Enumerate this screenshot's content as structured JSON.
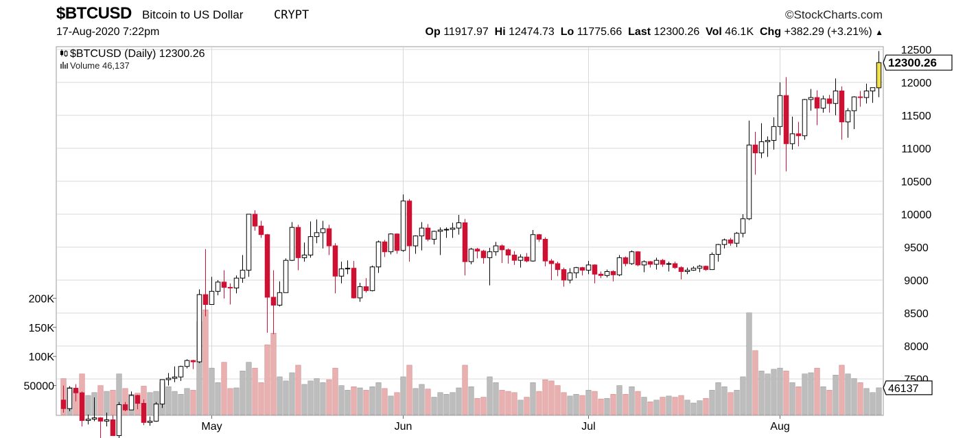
{
  "header": {
    "symbol": "$BTCUSD",
    "name": "Bitcoin to US Dollar",
    "exchange": "CRYPT",
    "brand": "©StockCharts.com",
    "date": "17-Aug-2020 7:22pm",
    "open_label": "Op",
    "open": "11917.97",
    "high_label": "Hi",
    "high": "12474.73",
    "low_label": "Lo",
    "low": "11775.66",
    "last_label": "Last",
    "last": "12300.26",
    "vol_label": "Vol",
    "vol": "46.1K",
    "chg_label": "Chg",
    "chg": "+382.29 (+3.21%)",
    "chg_arrow": "▲"
  },
  "legend": {
    "price": "$BTCUSD (Daily) 12300.26",
    "volume": "Volume 46,137"
  },
  "colors": {
    "up": "#000000",
    "down": "#cc1133",
    "last_candle": "#f0e050",
    "vol_up": "#bdbdbd",
    "vol_down": "#e8b0b0",
    "grid": "#d8d8d8"
  },
  "chart_data": {
    "type": "candlestick",
    "title": "$BTCUSD (Daily) 12300.26",
    "ylim": [
      7000,
      12500
    ],
    "yticks": [
      7500,
      8000,
      8500,
      9000,
      9500,
      10000,
      10500,
      11000,
      11500,
      12000,
      12500
    ],
    "ytick_labels": [
      "7500",
      "8000",
      "8500",
      "9000",
      "9500",
      "10000",
      "10500",
      "11000",
      "11500",
      "12000",
      "12500"
    ],
    "price_label": "12300.26",
    "volume_label": "46137",
    "volume_yticks": [
      50000,
      100000,
      150000,
      200000
    ],
    "volume_ytick_labels": [
      "50000",
      "100K",
      "150K",
      "200K"
    ],
    "volume_ylim": [
      0,
      250000
    ],
    "x_labels": [
      {
        "label": "May",
        "index": 24
      },
      {
        "label": "Jun",
        "index": 55
      },
      {
        "label": "Jul",
        "index": 85
      },
      {
        "label": "Aug",
        "index": 116
      }
    ],
    "ohlc": [
      [
        "2020-04-07",
        7180,
        7400,
        6990,
        7050,
        62000
      ],
      [
        "2020-04-08",
        7050,
        7390,
        7010,
        7360,
        47000
      ],
      [
        "2020-04-09",
        7360,
        7420,
        7160,
        7290,
        41000
      ],
      [
        "2020-04-10",
        7290,
        7310,
        6780,
        6870,
        70000
      ],
      [
        "2020-04-11",
        6870,
        6960,
        6810,
        6890,
        33000
      ],
      [
        "2020-04-12",
        6890,
        7220,
        6860,
        6910,
        38000
      ],
      [
        "2020-04-13",
        6910,
        6920,
        6560,
        6860,
        50000
      ],
      [
        "2020-04-14",
        6860,
        6990,
        6780,
        6880,
        40000
      ],
      [
        "2020-04-15",
        6880,
        6950,
        6640,
        6640,
        42000
      ],
      [
        "2020-04-16",
        6640,
        7150,
        6530,
        7110,
        70000
      ],
      [
        "2020-04-17",
        7110,
        7150,
        7010,
        7030,
        45000
      ],
      [
        "2020-04-18",
        7030,
        7310,
        7030,
        7250,
        35000
      ],
      [
        "2020-04-19",
        7250,
        7260,
        7040,
        7130,
        37000
      ],
      [
        "2020-04-20",
        7130,
        7190,
        6800,
        6840,
        49000
      ],
      [
        "2020-04-21",
        6840,
        6930,
        6790,
        6860,
        38000
      ],
      [
        "2020-04-22",
        6860,
        7150,
        6850,
        7120,
        40000
      ],
      [
        "2020-04-23",
        7120,
        7470,
        7060,
        7490,
        55000
      ],
      [
        "2020-04-24",
        7490,
        7590,
        7400,
        7510,
        48000
      ],
      [
        "2020-04-25",
        7510,
        7690,
        7450,
        7530,
        40000
      ],
      [
        "2020-04-26",
        7530,
        7700,
        7470,
        7690,
        35000
      ],
      [
        "2020-04-27",
        7690,
        7800,
        7660,
        7780,
        45000
      ],
      [
        "2020-04-28",
        7780,
        7790,
        7650,
        7760,
        42000
      ],
      [
        "2020-04-29",
        7760,
        8860,
        7740,
        8780,
        160000
      ],
      [
        "2020-04-30",
        8780,
        9470,
        8450,
        8630,
        180000
      ],
      [
        "2020-05-01",
        8630,
        9050,
        8630,
        8830,
        80000
      ],
      [
        "2020-05-02",
        8830,
        9000,
        8770,
        8970,
        55000
      ],
      [
        "2020-05-03",
        8970,
        9150,
        8720,
        8890,
        90000
      ],
      [
        "2020-05-04",
        8890,
        8950,
        8630,
        8880,
        45000
      ],
      [
        "2020-05-05",
        8880,
        9070,
        8800,
        9030,
        46000
      ],
      [
        "2020-05-06",
        9030,
        9380,
        8960,
        9150,
        75000
      ],
      [
        "2020-05-07",
        9150,
        10000,
        9050,
        10000,
        90000
      ],
      [
        "2020-05-08",
        10000,
        10060,
        9750,
        9820,
        80000
      ],
      [
        "2020-05-09",
        9820,
        9900,
        9640,
        9690,
        55000
      ],
      [
        "2020-05-10",
        9690,
        9700,
        8200,
        8740,
        120000
      ],
      [
        "2020-05-11",
        8740,
        9150,
        8180,
        8620,
        140000
      ],
      [
        "2020-05-12",
        8620,
        8980,
        8600,
        8810,
        65000
      ],
      [
        "2020-05-13",
        8810,
        9330,
        8810,
        9300,
        58000
      ],
      [
        "2020-05-14",
        9300,
        9880,
        9290,
        9800,
        72000
      ],
      [
        "2020-05-15",
        9800,
        9840,
        9150,
        9340,
        85000
      ],
      [
        "2020-05-16",
        9340,
        9570,
        9280,
        9380,
        52000
      ],
      [
        "2020-05-17",
        9380,
        9890,
        9340,
        9660,
        58000
      ],
      [
        "2020-05-18",
        9660,
        9920,
        9560,
        9720,
        62000
      ],
      [
        "2020-05-19",
        9720,
        9900,
        9480,
        9780,
        55000
      ],
      [
        "2020-05-20",
        9780,
        9840,
        9380,
        9520,
        60000
      ],
      [
        "2020-05-21",
        9520,
        9560,
        8800,
        9060,
        80000
      ],
      [
        "2020-05-22",
        9060,
        9280,
        8950,
        9170,
        50000
      ],
      [
        "2020-05-23",
        9170,
        9300,
        9090,
        9180,
        42000
      ],
      [
        "2020-05-24",
        9180,
        9290,
        8720,
        8730,
        48000
      ],
      [
        "2020-05-25",
        8730,
        8960,
        8670,
        8900,
        46000
      ],
      [
        "2020-05-26",
        8900,
        9030,
        8810,
        8840,
        42000
      ],
      [
        "2020-05-27",
        8840,
        9220,
        8830,
        9200,
        48000
      ],
      [
        "2020-05-28",
        9200,
        9600,
        9110,
        9580,
        55000
      ],
      [
        "2020-05-29",
        9580,
        9610,
        9350,
        9430,
        45000
      ],
      [
        "2020-05-30",
        9430,
        9710,
        9390,
        9700,
        32000
      ],
      [
        "2020-05-31",
        9700,
        9710,
        9400,
        9450,
        38000
      ],
      [
        "2020-06-01",
        9450,
        10300,
        9430,
        10200,
        65000
      ],
      [
        "2020-06-02",
        10200,
        10230,
        9280,
        9520,
        85000
      ],
      [
        "2020-06-03",
        9520,
        9680,
        9400,
        9670,
        45000
      ],
      [
        "2020-06-04",
        9670,
        9880,
        9450,
        9790,
        52000
      ],
      [
        "2020-06-05",
        9790,
        9850,
        9590,
        9620,
        44000
      ],
      [
        "2020-06-06",
        9620,
        9750,
        9540,
        9740,
        30000
      ],
      [
        "2020-06-07",
        9740,
        9800,
        9380,
        9760,
        38000
      ],
      [
        "2020-06-08",
        9760,
        9800,
        9640,
        9770,
        35000
      ],
      [
        "2020-06-09",
        9770,
        9870,
        9640,
        9790,
        38000
      ],
      [
        "2020-06-10",
        9790,
        9990,
        9690,
        9870,
        46000
      ],
      [
        "2020-06-11",
        9870,
        9930,
        9070,
        9280,
        85000
      ],
      [
        "2020-06-12",
        9280,
        9490,
        9240,
        9470,
        48000
      ],
      [
        "2020-06-13",
        9470,
        9490,
        9330,
        9440,
        28000
      ],
      [
        "2020-06-14",
        9440,
        9460,
        9250,
        9340,
        30000
      ],
      [
        "2020-06-15",
        9340,
        9490,
        8920,
        9430,
        65000
      ],
      [
        "2020-06-16",
        9430,
        9580,
        9370,
        9520,
        55000
      ],
      [
        "2020-06-17",
        9520,
        9540,
        9260,
        9460,
        42000
      ],
      [
        "2020-06-18",
        9460,
        9480,
        9250,
        9380,
        40000
      ],
      [
        "2020-06-19",
        9380,
        9440,
        9230,
        9300,
        38000
      ],
      [
        "2020-06-20",
        9300,
        9390,
        9190,
        9350,
        25000
      ],
      [
        "2020-06-21",
        9350,
        9410,
        9270,
        9290,
        30000
      ],
      [
        "2020-06-22",
        9290,
        9760,
        9280,
        9690,
        55000
      ],
      [
        "2020-06-23",
        9690,
        9700,
        9580,
        9620,
        40000
      ],
      [
        "2020-06-24",
        9620,
        9650,
        9210,
        9290,
        60000
      ],
      [
        "2020-06-25",
        9290,
        9320,
        9000,
        9250,
        58000
      ],
      [
        "2020-06-26",
        9250,
        9280,
        9060,
        9160,
        50000
      ],
      [
        "2020-06-27",
        9160,
        9190,
        8900,
        9000,
        38000
      ],
      [
        "2020-06-28",
        9000,
        9180,
        8950,
        9110,
        32000
      ],
      [
        "2020-06-29",
        9110,
        9200,
        9030,
        9190,
        35000
      ],
      [
        "2020-06-30",
        9190,
        9200,
        9070,
        9150,
        33000
      ],
      [
        "2020-07-01",
        9150,
        9290,
        9090,
        9230,
        42000
      ],
      [
        "2020-07-02",
        9230,
        9240,
        8950,
        9090,
        40000
      ],
      [
        "2020-07-03",
        9090,
        9130,
        9030,
        9070,
        27000
      ],
      [
        "2020-07-04",
        9070,
        9160,
        9040,
        9130,
        28000
      ],
      [
        "2020-07-05",
        9130,
        9150,
        8980,
        9080,
        35000
      ],
      [
        "2020-07-06",
        9080,
        9380,
        9060,
        9340,
        50000
      ],
      [
        "2020-07-07",
        9340,
        9360,
        9210,
        9250,
        35000
      ],
      [
        "2020-07-08",
        9250,
        9450,
        9230,
        9430,
        48000
      ],
      [
        "2020-07-09",
        9430,
        9440,
        9210,
        9230,
        40000
      ],
      [
        "2020-07-10",
        9230,
        9300,
        9120,
        9280,
        30000
      ],
      [
        "2020-07-11",
        9280,
        9290,
        9190,
        9240,
        22000
      ],
      [
        "2020-07-12",
        9240,
        9340,
        9160,
        9300,
        25000
      ],
      [
        "2020-07-13",
        9300,
        9320,
        9200,
        9240,
        30000
      ],
      [
        "2020-07-14",
        9240,
        9280,
        9130,
        9250,
        32000
      ],
      [
        "2020-07-15",
        9250,
        9280,
        9170,
        9190,
        30000
      ],
      [
        "2020-07-16",
        9190,
        9210,
        9010,
        9130,
        33000
      ],
      [
        "2020-07-17",
        9130,
        9190,
        9090,
        9150,
        25000
      ],
      [
        "2020-07-18",
        9150,
        9210,
        9140,
        9180,
        20000
      ],
      [
        "2020-07-19",
        9180,
        9230,
        9120,
        9210,
        24000
      ],
      [
        "2020-07-20",
        9210,
        9220,
        9140,
        9160,
        28000
      ],
      [
        "2020-07-21",
        9160,
        9420,
        9160,
        9390,
        42000
      ],
      [
        "2020-07-22",
        9390,
        9550,
        9280,
        9540,
        55000
      ],
      [
        "2020-07-23",
        9540,
        9630,
        9480,
        9610,
        48000
      ],
      [
        "2020-07-24",
        9610,
        9640,
        9520,
        9560,
        38000
      ],
      [
        "2020-07-25",
        9560,
        9730,
        9500,
        9710,
        42000
      ],
      [
        "2020-07-26",
        9710,
        10000,
        9650,
        9930,
        65000
      ],
      [
        "2020-07-27",
        9930,
        11420,
        9910,
        11050,
        175000
      ],
      [
        "2020-07-28",
        11050,
        11250,
        10600,
        10930,
        110000
      ],
      [
        "2020-07-29",
        10930,
        11380,
        10850,
        11100,
        75000
      ],
      [
        "2020-07-30",
        11100,
        11180,
        10870,
        11120,
        70000
      ],
      [
        "2020-07-31",
        11120,
        11470,
        10980,
        11330,
        78000
      ],
      [
        "2020-08-01",
        11330,
        12000,
        11200,
        11800,
        80000
      ],
      [
        "2020-08-02",
        11800,
        12080,
        10650,
        11070,
        75000
      ],
      [
        "2020-08-03",
        11070,
        11480,
        10980,
        11220,
        55000
      ],
      [
        "2020-08-04",
        11220,
        11400,
        11030,
        11190,
        48000
      ],
      [
        "2020-08-05",
        11190,
        11750,
        11130,
        11740,
        70000
      ],
      [
        "2020-08-06",
        11740,
        11900,
        11570,
        11770,
        72000
      ],
      [
        "2020-08-07",
        11770,
        11880,
        11350,
        11610,
        80000
      ],
      [
        "2020-08-08",
        11610,
        11800,
        11540,
        11750,
        48000
      ],
      [
        "2020-08-09",
        11750,
        11810,
        11540,
        11680,
        42000
      ],
      [
        "2020-08-10",
        11680,
        12060,
        11500,
        11870,
        68000
      ],
      [
        "2020-08-11",
        11870,
        11940,
        11130,
        11400,
        85000
      ],
      [
        "2020-08-12",
        11400,
        11610,
        11160,
        11570,
        70000
      ],
      [
        "2020-08-13",
        11570,
        11790,
        11290,
        11780,
        62000
      ],
      [
        "2020-08-14",
        11780,
        11870,
        11630,
        11770,
        55000
      ],
      [
        "2020-08-15",
        11770,
        11980,
        11680,
        11870,
        45000
      ],
      [
        "2020-08-16",
        11870,
        11920,
        11690,
        11920,
        38000
      ],
      [
        "2020-08-17",
        11917.97,
        12474.73,
        11775.66,
        12300.26,
        46137
      ]
    ]
  }
}
